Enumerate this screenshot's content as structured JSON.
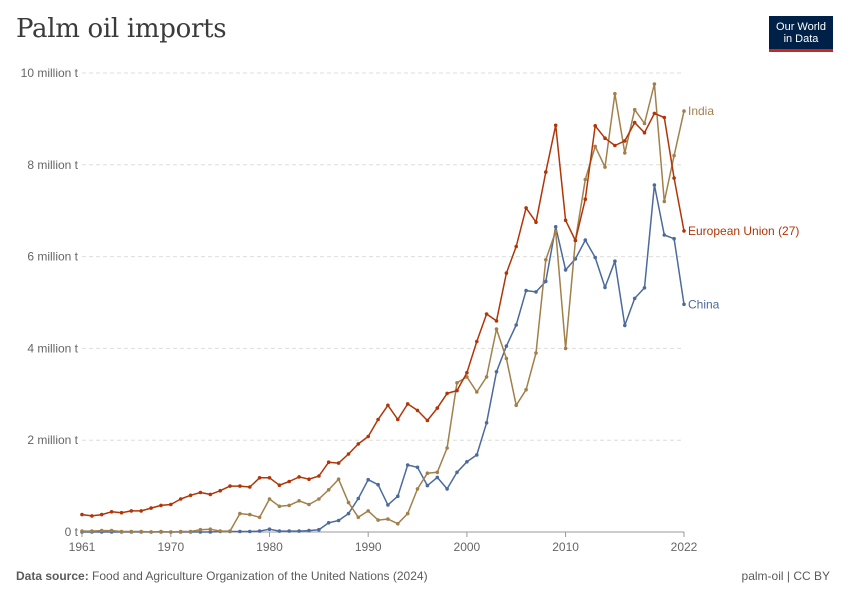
{
  "header": {
    "title": "Palm oil imports"
  },
  "logo": {
    "line1": "Our World",
    "line2": "in Data"
  },
  "footer": {
    "source_label": "Data source:",
    "source_text": "Food and Agriculture Organization of the United Nations (2024)",
    "slug": "palm-oil | CC BY"
  },
  "colors": {
    "eu": "#b13507",
    "india": "#a2804b",
    "china": "#4c6a9c",
    "logo_bg": "#002147",
    "logo_accent": "#ce261e"
  },
  "chart_data": {
    "type": "line",
    "title": "Palm oil imports",
    "ylim": [
      0,
      10000000
    ],
    "xlim": [
      1961,
      2022
    ],
    "y_ticks": [
      {
        "value": 0,
        "label": "0 t"
      },
      {
        "value": 2000000,
        "label": "2 million t"
      },
      {
        "value": 4000000,
        "label": "4 million t"
      },
      {
        "value": 6000000,
        "label": "6 million t"
      },
      {
        "value": 8000000,
        "label": "8 million t"
      },
      {
        "value": 10000000,
        "label": "10 million t"
      }
    ],
    "x_ticks": [
      {
        "value": 1961,
        "label": "1961"
      },
      {
        "value": 1970,
        "label": "1970"
      },
      {
        "value": 1980,
        "label": "1980"
      },
      {
        "value": 1990,
        "label": "1990"
      },
      {
        "value": 2000,
        "label": "2000"
      },
      {
        "value": 2010,
        "label": "2010"
      },
      {
        "value": 2022,
        "label": "2022"
      }
    ],
    "x": [
      1961,
      1962,
      1963,
      1964,
      1965,
      1966,
      1967,
      1968,
      1969,
      1970,
      1971,
      1972,
      1973,
      1974,
      1975,
      1976,
      1977,
      1978,
      1979,
      1980,
      1981,
      1982,
      1983,
      1984,
      1985,
      1986,
      1987,
      1988,
      1989,
      1990,
      1991,
      1992,
      1993,
      1994,
      1995,
      1996,
      1997,
      1998,
      1999,
      2000,
      2001,
      2002,
      2003,
      2004,
      2005,
      2006,
      2007,
      2008,
      2009,
      2010,
      2011,
      2012,
      2013,
      2014,
      2015,
      2016,
      2017,
      2018,
      2019,
      2020,
      2021,
      2022
    ],
    "series": [
      {
        "name": "India",
        "key": "india",
        "values": [
          20000,
          20000,
          30000,
          30000,
          10000,
          10000,
          10000,
          0,
          10000,
          0,
          10000,
          10000,
          50000,
          60000,
          20000,
          20000,
          400000,
          380000,
          320000,
          720000,
          560000,
          580000,
          680000,
          600000,
          720000,
          920000,
          1150000,
          640000,
          320000,
          460000,
          260000,
          280000,
          180000,
          400000,
          940000,
          1280000,
          1300000,
          1830000,
          3250000,
          3380000,
          3050000,
          3380000,
          4420000,
          3780000,
          2760000,
          3100000,
          3900000,
          5930000,
          6550000,
          4000000,
          6350000,
          7680000,
          8400000,
          7950000,
          9550000,
          8260000,
          9200000,
          8900000,
          9760000,
          7200000,
          8200000,
          9170000
        ]
      },
      {
        "name": "European Union (27)",
        "key": "eu",
        "values": [
          380000,
          350000,
          380000,
          440000,
          420000,
          460000,
          460000,
          520000,
          580000,
          600000,
          720000,
          800000,
          860000,
          820000,
          900000,
          1000000,
          1000000,
          980000,
          1180000,
          1180000,
          1020000,
          1100000,
          1200000,
          1150000,
          1220000,
          1520000,
          1500000,
          1700000,
          1920000,
          2080000,
          2450000,
          2760000,
          2450000,
          2790000,
          2650000,
          2430000,
          2700000,
          3020000,
          3080000,
          3470000,
          4150000,
          4750000,
          4600000,
          5640000,
          6220000,
          7060000,
          6750000,
          7840000,
          8860000,
          6790000,
          6350000,
          7250000,
          8850000,
          8580000,
          8420000,
          8520000,
          8920000,
          8700000,
          9120000,
          9030000,
          7710000,
          6560000
        ]
      },
      {
        "name": "China",
        "key": "china",
        "values": [
          0,
          0,
          0,
          0,
          0,
          0,
          0,
          0,
          0,
          0,
          0,
          0,
          0,
          0,
          10000,
          10000,
          10000,
          10000,
          20000,
          60000,
          20000,
          20000,
          20000,
          30000,
          50000,
          200000,
          250000,
          400000,
          730000,
          1140000,
          1030000,
          590000,
          780000,
          1460000,
          1410000,
          1010000,
          1190000,
          940000,
          1300000,
          1530000,
          1680000,
          2380000,
          3490000,
          4050000,
          4510000,
          5260000,
          5230000,
          5460000,
          6650000,
          5710000,
          5950000,
          6360000,
          5980000,
          5330000,
          5900000,
          4500000,
          5090000,
          5320000,
          7560000,
          6470000,
          6390000,
          4960000
        ]
      }
    ],
    "series_labels": [
      {
        "key": "india",
        "text": "India"
      },
      {
        "key": "eu",
        "text": "European Union (27)"
      },
      {
        "key": "china",
        "text": "China"
      }
    ],
    "grid": true,
    "legend": "line-end labels"
  }
}
